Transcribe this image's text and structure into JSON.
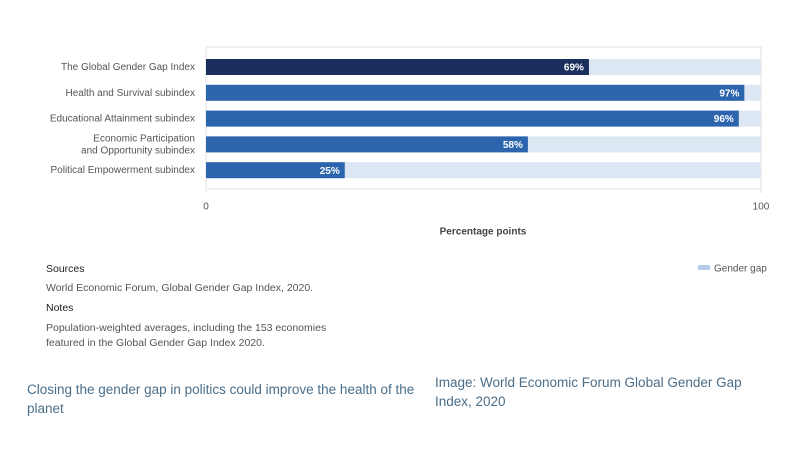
{
  "chart_data": {
    "type": "bar",
    "orientation": "horizontal",
    "categories": [
      "The Global Gender Gap Index",
      "Health and Survival subindex",
      "Educational Attainment subindex",
      "Economic Participation\nand Opportunity subindex",
      "Political Empowerment subindex"
    ],
    "values": [
      69,
      97,
      96,
      58,
      25
    ],
    "value_labels": [
      "69%",
      "97%",
      "96%",
      "58%",
      "25%"
    ],
    "colors": [
      "#1b2f5e",
      "#2c64ad",
      "#2c64ad",
      "#2c64ad",
      "#2c64ad"
    ],
    "track_color": "#dde7f3",
    "legend": {
      "label": "Gender gap",
      "color": "#b7cbe6"
    },
    "xlim": [
      0,
      100
    ],
    "xticks": [
      0,
      100
    ],
    "xlabel": "Percentage points"
  },
  "sources_heading": "Sources",
  "sources": "World Economic Forum, Global Gender Gap Index, 2020.",
  "notes_heading": "Notes",
  "notes": "Population-weighted averages, including the 153 economies featured in the Global Gender Gap Index 2020.",
  "caption": "Closing the gender gap in politics could improve the health of the planet",
  "credit": "Image: World Economic Forum Global Gender Gap Index, 2020"
}
